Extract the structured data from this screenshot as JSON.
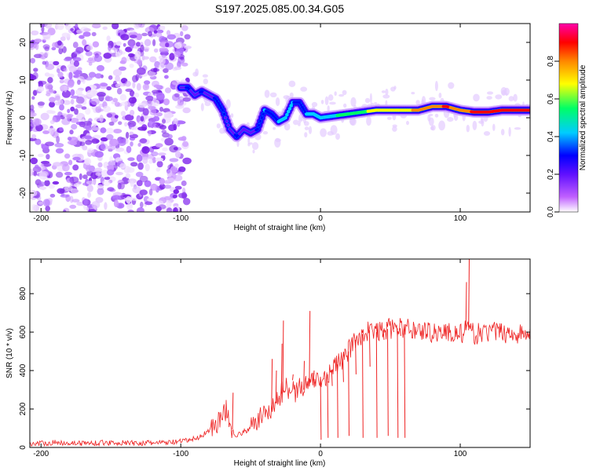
{
  "figure": {
    "title": "S197.2025.085.00.34.G05"
  },
  "colors": {
    "snr_line": "#ee2222",
    "axis": "#000000",
    "background": "#ffffff"
  },
  "chart_data": [
    {
      "type": "heatmap",
      "title": "",
      "xlabel": "Height of straight line (km)",
      "ylabel": "Frequency (Hz)",
      "xlim": [
        -208,
        150
      ],
      "ylim": [
        -25,
        25
      ],
      "xticks": [
        -200,
        -100,
        0,
        100
      ],
      "yticks": [
        -20,
        -10,
        0,
        10,
        20
      ],
      "colorbar": {
        "label": "Normalized spectral amplitude",
        "range": [
          0,
          1
        ],
        "ticks": [
          0.0,
          0.2,
          0.4,
          0.6,
          0.8
        ],
        "colormap": [
          "#ffffff",
          "#c060ff",
          "#6010ff",
          "#0000ff",
          "#00ccff",
          "#00ff66",
          "#ffff00",
          "#ff8800",
          "#ff0000",
          "#ff00aa"
        ]
      },
      "noise_region_x": [
        -208,
        -95
      ],
      "ridge": {
        "x": [
          -100,
          -95,
          -90,
          -85,
          -80,
          -75,
          -70,
          -65,
          -60,
          -55,
          -50,
          -45,
          -40,
          -35,
          -30,
          -25,
          -20,
          -15,
          -10,
          -5,
          0,
          10,
          20,
          30,
          40,
          50,
          60,
          70,
          80,
          90,
          100,
          110,
          120,
          130,
          140,
          150
        ],
        "freq": [
          8,
          8,
          6,
          7,
          6,
          5,
          2,
          -3,
          -5,
          -3,
          -4,
          -3,
          2,
          1,
          -1,
          0,
          4,
          4,
          1,
          1,
          0,
          0.5,
          1,
          1.5,
          2,
          2,
          2,
          2,
          3,
          3,
          2,
          1.5,
          1.5,
          2,
          2,
          2
        ],
        "amplitude": [
          0.3,
          0.35,
          0.3,
          0.35,
          0.3,
          0.35,
          0.35,
          0.3,
          0.35,
          0.3,
          0.3,
          0.35,
          0.45,
          0.4,
          0.45,
          0.5,
          0.45,
          0.4,
          0.45,
          0.5,
          0.55,
          0.55,
          0.6,
          0.65,
          0.7,
          0.7,
          0.75,
          0.8,
          0.85,
          0.9,
          0.85,
          0.9,
          0.9,
          0.9,
          0.9,
          0.9
        ]
      }
    },
    {
      "type": "line",
      "title": "",
      "xlabel": "Height of straight line (km)",
      "ylabel": "SNR (10 * v/v)",
      "xlim": [
        -208,
        150
      ],
      "ylim": [
        0,
        980
      ],
      "xticks": [
        -200,
        -100,
        0,
        100
      ],
      "yticks": [
        0,
        200,
        400,
        600,
        800
      ],
      "series": [
        {
          "x": [
            -208,
            -190,
            -170,
            -150,
            -130,
            -110,
            -100,
            -90,
            -85,
            -80,
            -75,
            -70,
            -67,
            -65,
            -62,
            -60,
            -55,
            -50,
            -45,
            -40,
            -35,
            -30,
            -28,
            -25,
            -22,
            -20,
            -18,
            -15,
            -12,
            -10,
            -8,
            -5,
            -2,
            0,
            5,
            10,
            15,
            20,
            25,
            30,
            35,
            40,
            50,
            60,
            70,
            80,
            90,
            100,
            103,
            105,
            107,
            110,
            120,
            130,
            140,
            150
          ],
          "values": [
            20,
            25,
            22,
            25,
            22,
            25,
            30,
            45,
            60,
            90,
            120,
            160,
            200,
            120,
            80,
            60,
            80,
            100,
            140,
            180,
            200,
            250,
            280,
            320,
            300,
            350,
            280,
            320,
            300,
            330,
            320,
            350,
            360,
            340,
            380,
            420,
            450,
            500,
            560,
            590,
            610,
            600,
            620,
            620,
            610,
            600,
            600,
            590,
            600,
            620,
            600,
            590,
            600,
            600,
            590,
            590
          ]
        }
      ],
      "spikes": {
        "x": [
          -63,
          -35,
          -32,
          -28,
          -27,
          -20,
          -12,
          -8,
          -5,
          0,
          2,
          5,
          8,
          12,
          16,
          20,
          25,
          30,
          35,
          40,
          45,
          48,
          52,
          55,
          57,
          60,
          104,
          106
        ],
        "values": [
          285,
          460,
          400,
          540,
          660,
          380,
          450,
          710,
          400,
          40,
          360,
          50,
          320,
          50,
          340,
          60,
          380,
          50,
          420,
          50,
          560,
          60,
          600,
          50,
          580,
          50,
          860,
          980
        ]
      }
    }
  ]
}
